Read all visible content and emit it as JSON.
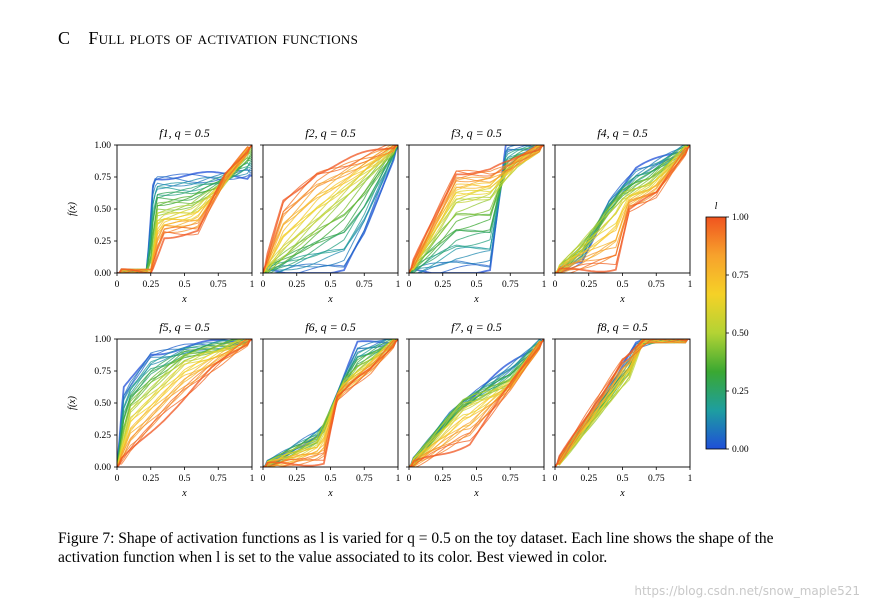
{
  "section": {
    "number": "C",
    "title": "Full plots of activation functions"
  },
  "caption": {
    "text": "Figure 7: Shape of activation functions as l is varied for q = 0.5 on the toy dataset. Each line shows the shape of the activation function when l is set to the value associated to its color. Best viewed in color."
  },
  "watermark": "https://blog.csdn.net/snow_maple521",
  "colorbar": {
    "label": "l",
    "ticks": [
      "0.00",
      "0.25",
      "0.50",
      "0.75",
      "1.00"
    ],
    "colors": [
      "#1f4fd8",
      "#1e9ea0",
      "#3aa832",
      "#b3d334",
      "#f5d127",
      "#f7a22c",
      "#f0541f"
    ]
  },
  "chart_data": {
    "type": "line",
    "xlabel": "x",
    "ylabel": "f(x)",
    "xlim": [
      0,
      1
    ],
    "ylim": [
      0,
      1
    ],
    "xticks": [
      "0",
      "0.25",
      "0.5",
      "0.75",
      "1"
    ],
    "yticks": [
      "0.00",
      "0.25",
      "0.50",
      "0.75",
      "1.00"
    ],
    "panels": [
      {
        "title": "f1, q = 0.5",
        "name": "f1"
      },
      {
        "title": "f2, q = 0.5",
        "name": "f2"
      },
      {
        "title": "f3, q = 0.5",
        "name": "f3"
      },
      {
        "title": "f4, q = 0.5",
        "name": "f4"
      },
      {
        "title": "f5, q = 0.5",
        "name": "f5"
      },
      {
        "title": "f6, q = 0.5",
        "name": "f6"
      },
      {
        "title": "f7, q = 0.5",
        "name": "f7"
      },
      {
        "title": "f8, q = 0.5",
        "name": "f8"
      }
    ],
    "representative_curves": {
      "f1": [
        {
          "l": 0.0,
          "x": [
            0,
            0.22,
            0.27,
            0.3,
            1.0
          ],
          "y": [
            0,
            0,
            0.76,
            0.76,
            0.76
          ]
        },
        {
          "l": 0.5,
          "x": [
            0,
            0.25,
            0.3,
            0.55,
            0.75,
            1.0
          ],
          "y": [
            0,
            0,
            0.45,
            0.5,
            0.65,
            1.0
          ]
        },
        {
          "l": 1.0,
          "x": [
            0,
            0.25,
            0.35,
            0.6,
            0.8,
            1.0
          ],
          "y": [
            0,
            0,
            0.3,
            0.32,
            0.75,
            1.0
          ]
        }
      ],
      "f2": [
        {
          "l": 0.0,
          "x": [
            0,
            0.6,
            0.75,
            1.0
          ],
          "y": [
            0,
            0,
            0.3,
            1.0
          ]
        },
        {
          "l": 0.5,
          "x": [
            0,
            0.3,
            0.7,
            1.0
          ],
          "y": [
            0,
            0.3,
            0.7,
            1.0
          ]
        },
        {
          "l": 1.0,
          "x": [
            0,
            0.15,
            0.4,
            1.0
          ],
          "y": [
            0,
            0.55,
            0.8,
            1.0
          ]
        }
      ],
      "f3": [
        {
          "l": 0.0,
          "x": [
            0,
            0.6,
            0.72,
            1.0
          ],
          "y": [
            0,
            0,
            1.0,
            1.0
          ]
        },
        {
          "l": 0.5,
          "x": [
            0,
            0.35,
            0.6,
            0.8,
            1.0
          ],
          "y": [
            0,
            0.55,
            0.6,
            0.85,
            1.0
          ]
        },
        {
          "l": 1.0,
          "x": [
            0,
            0.35,
            0.6,
            0.75,
            1.0
          ],
          "y": [
            0,
            0.8,
            0.8,
            0.85,
            1.0
          ]
        }
      ],
      "f4": [
        {
          "l": 0.0,
          "x": [
            0,
            0.2,
            0.4,
            0.6,
            1.0
          ],
          "y": [
            0,
            0.1,
            0.55,
            0.8,
            1.0
          ]
        },
        {
          "l": 0.5,
          "x": [
            0,
            0.3,
            0.5,
            0.7,
            1.0
          ],
          "y": [
            0,
            0.35,
            0.6,
            0.7,
            1.0
          ]
        },
        {
          "l": 1.0,
          "x": [
            0,
            0.45,
            0.55,
            0.75,
            1.0
          ],
          "y": [
            0,
            0.05,
            0.5,
            0.6,
            1.0
          ]
        }
      ],
      "f5": [
        {
          "l": 0.0,
          "x": [
            0,
            0.05,
            0.25,
            1.0
          ],
          "y": [
            0,
            0.6,
            0.9,
            1.0
          ]
        },
        {
          "l": 0.5,
          "x": [
            0,
            0.1,
            0.5,
            1.0
          ],
          "y": [
            0,
            0.45,
            0.85,
            1.0
          ]
        },
        {
          "l": 1.0,
          "x": [
            0,
            0.4,
            0.7,
            1.0
          ],
          "y": [
            0,
            0.45,
            0.75,
            1.0
          ]
        }
      ],
      "f6": [
        {
          "l": 0.0,
          "x": [
            0,
            0.45,
            0.7,
            1.0
          ],
          "y": [
            0,
            0.3,
            0.95,
            1.0
          ]
        },
        {
          "l": 0.5,
          "x": [
            0,
            0.4,
            0.6,
            1.0
          ],
          "y": [
            0,
            0.2,
            0.65,
            1.0
          ]
        },
        {
          "l": 1.0,
          "x": [
            0,
            0.45,
            0.55,
            0.8,
            1.0
          ],
          "y": [
            0,
            0.05,
            0.55,
            0.75,
            1.0
          ]
        }
      ],
      "f7": [
        {
          "l": 0.0,
          "x": [
            0,
            0.3,
            0.7,
            1.0
          ],
          "y": [
            0,
            0.4,
            0.75,
            1.0
          ]
        },
        {
          "l": 0.5,
          "x": [
            0,
            0.4,
            0.75,
            1.0
          ],
          "y": [
            0,
            0.5,
            0.65,
            1.0
          ]
        },
        {
          "l": 1.0,
          "x": [
            0,
            0.45,
            0.7,
            1.0
          ],
          "y": [
            0,
            0.2,
            0.55,
            1.0
          ]
        }
      ],
      "f8": [
        {
          "l": 0.0,
          "x": [
            0,
            0.6,
            0.75,
            1.0
          ],
          "y": [
            0,
            0.95,
            1.0,
            1.0
          ]
        },
        {
          "l": 0.5,
          "x": [
            0,
            0.55,
            0.65,
            1.0
          ],
          "y": [
            0,
            0.7,
            1.0,
            1.0
          ]
        },
        {
          "l": 1.0,
          "x": [
            0,
            0.5,
            0.7,
            1.0
          ],
          "y": [
            0,
            0.85,
            1.0,
            1.0
          ]
        }
      ]
    }
  }
}
